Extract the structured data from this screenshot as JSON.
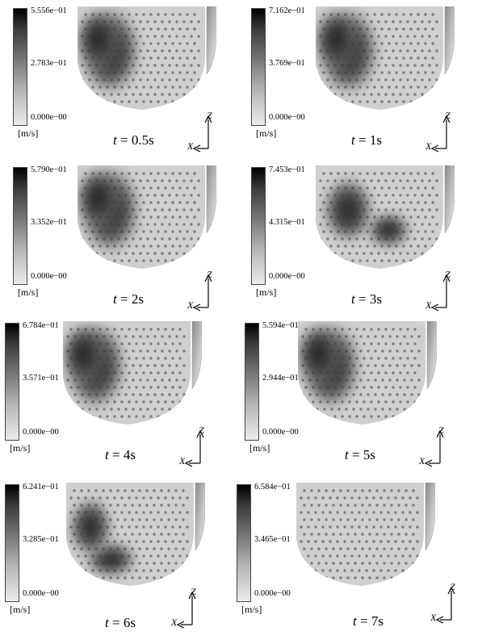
{
  "units": "[m/s]",
  "time_var": "t",
  "axis_x_label": "X",
  "axis_z_label": "Z",
  "panels": [
    {
      "time": "= 0.5s",
      "max": "5.556e−01",
      "mid": "2.783e−01",
      "min": "0.000e−00",
      "dark_region": "left"
    },
    {
      "time": "= 1s",
      "max": "7.162e−01",
      "mid": "3.769e−01",
      "min": "0.000e−00",
      "dark_region": "left"
    },
    {
      "time": "= 2s",
      "max": "5.790e−01",
      "mid": "3.352e−01",
      "min": "0.000e−00",
      "dark_region": "left"
    },
    {
      "time": "= 3s",
      "max": "7.453e−01",
      "mid": "4.315e−01",
      "min": "0.000e−00",
      "dark_region": "center"
    },
    {
      "time": "= 4s",
      "max": "6.784e−01",
      "mid": "3.571e−01",
      "min": "0.000e−00",
      "dark_region": "left"
    },
    {
      "time": "= 5s",
      "max": "5.594e−01",
      "mid": "2.944e−01",
      "min": "0.000e−00",
      "dark_region": "left"
    },
    {
      "time": "= 6s",
      "max": "6.241e−01",
      "mid": "3.285e−01",
      "min": "0.000e−00",
      "dark_region": "lower-left"
    },
    {
      "time": "= 7s",
      "max": "6.584e−01",
      "mid": "3.465e−01",
      "min": "0.000e−00",
      "dark_region": "none"
    }
  ]
}
